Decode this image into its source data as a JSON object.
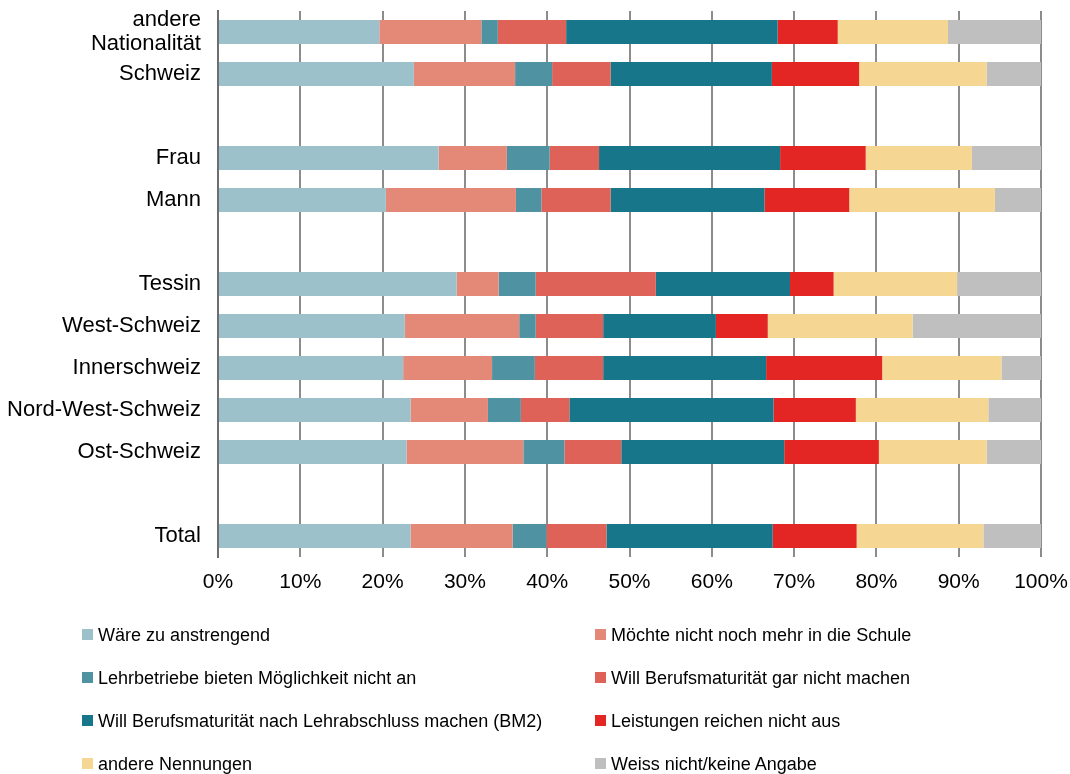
{
  "chart_data": {
    "type": "bar",
    "orientation": "horizontal",
    "stacked": true,
    "categories": [
      "andere Nationalität",
      "Schweiz",
      null,
      "Frau",
      "Mann",
      null,
      "Tessin",
      "West-Schweiz",
      "Innerschweiz",
      "Nord-West-Schweiz",
      "Ost-Schweiz",
      null,
      "Total"
    ],
    "series": [
      {
        "name": "Wäre zu anstrengend",
        "color": "#9dc1ca",
        "values": [
          19.6,
          23.8,
          null,
          26.8,
          20.4,
          null,
          29.0,
          22.7,
          22.5,
          23.4,
          22.9,
          null,
          23.4
        ]
      },
      {
        "name": "Möchte nicht noch mehr in die Schule",
        "color": "#e48878",
        "values": [
          12.4,
          12.3,
          null,
          8.3,
          15.8,
          null,
          5.1,
          13.9,
          10.8,
          9.4,
          14.2,
          null,
          12.4
        ]
      },
      {
        "name": "Lehrbetriebe bieten Möglichkeit nicht an",
        "color": "#4f92a2",
        "values": [
          2.0,
          4.5,
          null,
          5.2,
          3.1,
          null,
          4.5,
          2.0,
          5.2,
          4.0,
          5.0,
          null,
          4.1
        ]
      },
      {
        "name": "Will Berufsmaturität gar nicht machen",
        "color": "#de6257",
        "values": [
          8.3,
          7.1,
          null,
          6.0,
          8.4,
          null,
          14.6,
          8.2,
          8.3,
          5.9,
          6.9,
          null,
          7.3
        ]
      },
      {
        "name": "Will Berufsmaturität nach Lehrabschluss machen (BM2)",
        "color": "#18768a",
        "values": [
          25.7,
          19.6,
          null,
          22.0,
          18.7,
          null,
          16.3,
          13.7,
          19.8,
          24.8,
          19.8,
          null,
          20.2
        ]
      },
      {
        "name": "Leistungen reichen nicht aus",
        "color": "#e32624",
        "values": [
          7.3,
          10.6,
          null,
          10.4,
          10.3,
          null,
          5.3,
          6.3,
          14.1,
          10.0,
          11.5,
          null,
          10.2
        ]
      },
      {
        "name": "andere Nennungen",
        "color": "#f5d692",
        "values": [
          13.4,
          15.5,
          null,
          12.9,
          17.7,
          null,
          15.0,
          17.6,
          14.5,
          16.1,
          13.1,
          null,
          15.4
        ]
      },
      {
        "name": "Weiss nicht/keine Angabe",
        "color": "#bfbfbf",
        "values": [
          11.3,
          6.6,
          null,
          8.4,
          5.6,
          null,
          10.2,
          15.6,
          4.8,
          6.4,
          6.6,
          null,
          7.0
        ]
      }
    ],
    "xlim": [
      0,
      100
    ],
    "xticks": [
      {
        "value": 0,
        "label": "0%"
      },
      {
        "value": 10,
        "label": "10%"
      },
      {
        "value": 20,
        "label": "20%"
      },
      {
        "value": 30,
        "label": "30%"
      },
      {
        "value": 40,
        "label": "40%"
      },
      {
        "value": 50,
        "label": "50%"
      },
      {
        "value": 60,
        "label": "60%"
      },
      {
        "value": 70,
        "label": "70%"
      },
      {
        "value": 80,
        "label": "80%"
      },
      {
        "value": 90,
        "label": "90%"
      },
      {
        "value": 100,
        "label": "100%"
      }
    ],
    "grid": "x",
    "legend": "bottom"
  }
}
